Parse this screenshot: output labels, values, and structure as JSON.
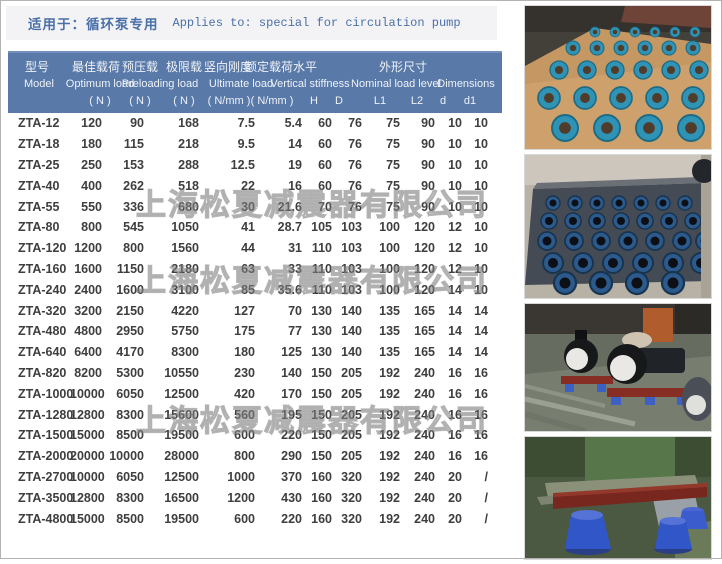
{
  "banner": {
    "cn": "适用于：循环泵专用",
    "en": "Applies to: special for circulation pump"
  },
  "table": {
    "header": {
      "cn": [
        "型号",
        "最佳载荷",
        "预压载",
        "极限载",
        "竖向刚度",
        "额定载荷水平",
        "外形尺寸"
      ],
      "en": [
        "Model",
        "Optimum load",
        "Preloading load",
        "Ultimate load",
        "Vertical stiffness",
        "Nominal load level",
        "Dimensions"
      ],
      "units": [
        "( N )",
        "( N )",
        "( N )",
        "( N/mm )",
        "( N/mm )"
      ],
      "dims": [
        "H",
        "D",
        "L1",
        "L2",
        "d",
        "d1"
      ]
    },
    "rows": [
      {
        "model": "ZTA-12",
        "values": [
          "120",
          "90",
          "168",
          "7.5",
          "5.4",
          "60",
          "76",
          "75",
          "90",
          "10",
          "10"
        ]
      },
      {
        "model": "ZTA-18",
        "values": [
          "180",
          "115",
          "218",
          "9.5",
          "14",
          "60",
          "76",
          "75",
          "90",
          "10",
          "10"
        ]
      },
      {
        "model": "ZTA-25",
        "values": [
          "250",
          "153",
          "288",
          "12.5",
          "19",
          "60",
          "76",
          "75",
          "90",
          "10",
          "10"
        ]
      },
      {
        "model": "ZTA-40",
        "values": [
          "400",
          "262",
          "518",
          "22",
          "16",
          "60",
          "76",
          "75",
          "90",
          "10",
          "10"
        ]
      },
      {
        "model": "ZTA-55",
        "values": [
          "550",
          "336",
          "680",
          "30",
          "21.6",
          "70",
          "76",
          "75",
          "90",
          "10",
          "10"
        ]
      },
      {
        "model": "ZTA-80",
        "values": [
          "800",
          "545",
          "1050",
          "41",
          "28.7",
          "105",
          "103",
          "100",
          "120",
          "12",
          "10"
        ]
      },
      {
        "model": "ZTA-120",
        "values": [
          "1200",
          "800",
          "1560",
          "44",
          "31",
          "110",
          "103",
          "100",
          "120",
          "12",
          "10"
        ]
      },
      {
        "model": "ZTA-160",
        "values": [
          "1600",
          "1150",
          "2180",
          "63",
          "33",
          "110",
          "103",
          "100",
          "120",
          "12",
          "10"
        ]
      },
      {
        "model": "ZTA-240",
        "values": [
          "2400",
          "1600",
          "3100",
          "85",
          "35.6",
          "110",
          "103",
          "100",
          "120",
          "14",
          "10"
        ]
      },
      {
        "model": "ZTA-320",
        "values": [
          "3200",
          "2150",
          "4220",
          "127",
          "70",
          "130",
          "140",
          "135",
          "165",
          "14",
          "14"
        ]
      },
      {
        "model": "ZTA-480",
        "values": [
          "4800",
          "2950",
          "5750",
          "175",
          "77",
          "130",
          "140",
          "135",
          "165",
          "14",
          "14"
        ]
      },
      {
        "model": "ZTA-640",
        "values": [
          "6400",
          "4170",
          "8300",
          "180",
          "125",
          "130",
          "140",
          "135",
          "165",
          "14",
          "14"
        ]
      },
      {
        "model": "ZTA-820",
        "values": [
          "8200",
          "5300",
          "10550",
          "230",
          "140",
          "150",
          "205",
          "192",
          "240",
          "16",
          "16"
        ]
      },
      {
        "model": "ZTA-1000",
        "values": [
          "10000",
          "6050",
          "12500",
          "420",
          "170",
          "150",
          "205",
          "192",
          "240",
          "16",
          "16"
        ]
      },
      {
        "model": "ZTA-1280",
        "values": [
          "12800",
          "8300",
          "15600",
          "560",
          "195",
          "150",
          "205",
          "192",
          "240",
          "16",
          "16"
        ]
      },
      {
        "model": "ZTA-1500",
        "values": [
          "15000",
          "8500",
          "19500",
          "600",
          "220",
          "150",
          "205",
          "192",
          "240",
          "16",
          "16"
        ]
      },
      {
        "model": "ZTA-2000",
        "values": [
          "20000",
          "10000",
          "28000",
          "800",
          "290",
          "150",
          "205",
          "192",
          "240",
          "16",
          "16"
        ]
      },
      {
        "model": "ZTA-2700",
        "values": [
          "10000",
          "6050",
          "12500",
          "1000",
          "370",
          "160",
          "320",
          "192",
          "240",
          "20",
          "/"
        ]
      },
      {
        "model": "ZTA-3500",
        "values": [
          "12800",
          "8300",
          "16500",
          "1200",
          "430",
          "160",
          "320",
          "192",
          "240",
          "20",
          "/"
        ]
      },
      {
        "model": "ZTA-4800",
        "values": [
          "15000",
          "8500",
          "19500",
          "600",
          "220",
          "160",
          "320",
          "192",
          "240",
          "20",
          "/"
        ]
      }
    ]
  },
  "watermark": {
    "text": "上海松夏减震器有限公司"
  },
  "colors": {
    "header_bg": "#5979a9",
    "banner_text": "#4a70a8",
    "watermark_gray": "#7d7d7d",
    "data_text": "#3e3e3e"
  }
}
